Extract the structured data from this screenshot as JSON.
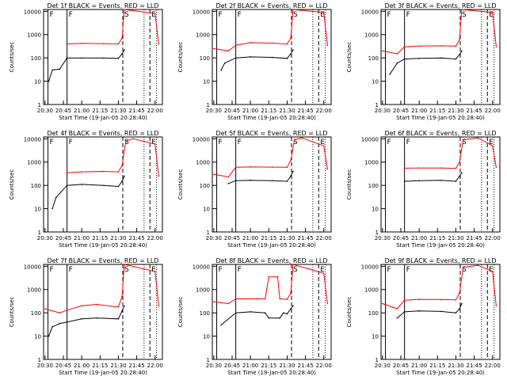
{
  "figure": {
    "xlabel_template": "Start Time (19-Jan-05 20:28:40)",
    "ylabel": "Counts/sec",
    "ytick_labels": [
      "1",
      "10",
      "100",
      "1000",
      "10000"
    ],
    "xtick_labels": [
      "20:30",
      "20:45",
      "21:00",
      "21:15",
      "21:30",
      "21:45",
      "22:00"
    ],
    "colors": {
      "events": "#000000",
      "lld": "#ff0000",
      "background": "#ffffff"
    },
    "marker_letters": [
      "F",
      "F",
      "S",
      "E"
    ]
  },
  "chart_data": [
    {
      "type": "line",
      "title": "Det 1f BLACK = Events, RED = LLD",
      "xlabel": "Start Time (19-Jan-05 20:28:40)",
      "ylabel": "Counts/sec",
      "x_range": [
        "20:30",
        "22:06"
      ],
      "ylim": [
        1,
        12000
      ],
      "log_y": true,
      "series": [
        {
          "name": "Events",
          "color": "#000000",
          "values": [
            [
              20.55,
              10
            ],
            [
              20.6,
              30
            ],
            [
              20.7,
              33
            ],
            [
              20.8,
              100
            ],
            [
              21.0,
              100
            ],
            [
              21.3,
              100
            ],
            [
              21.5,
              95
            ],
            [
              21.55,
              150
            ],
            [
              21.58,
              220
            ]
          ]
        },
        {
          "name": "LLD",
          "color": "#ff0000",
          "values": [
            [
              20.8,
              400
            ],
            [
              21.0,
              420
            ],
            [
              21.3,
              410
            ],
            [
              21.5,
              400
            ],
            [
              21.55,
              700
            ],
            [
              21.58,
              12000
            ],
            [
              22.0,
              8000
            ],
            [
              22.05,
              400
            ]
          ]
        }
      ]
    },
    {
      "type": "line",
      "title": "Det 2f BLACK = Events, RED = LLD",
      "xlabel": "Start Time (19-Jan-05 20:28:40)",
      "ylabel": "Counts/sec",
      "x_range": [
        "20:30",
        "22:06"
      ],
      "ylim": [
        1,
        12000
      ],
      "log_y": true,
      "series": [
        {
          "name": "Events",
          "color": "#000000",
          "values": [
            [
              20.6,
              30
            ],
            [
              20.65,
              60
            ],
            [
              20.8,
              100
            ],
            [
              21.0,
              110
            ],
            [
              21.3,
              105
            ],
            [
              21.5,
              95
            ],
            [
              21.55,
              150
            ],
            [
              21.58,
              220
            ]
          ]
        },
        {
          "name": "LLD",
          "color": "#ff0000",
          "values": [
            [
              20.5,
              250
            ],
            [
              20.7,
              200
            ],
            [
              20.8,
              350
            ],
            [
              21.0,
              450
            ],
            [
              21.3,
              430
            ],
            [
              21.5,
              400
            ],
            [
              21.55,
              700
            ],
            [
              21.58,
              12000
            ],
            [
              22.0,
              9000
            ],
            [
              22.05,
              350
            ]
          ]
        }
      ]
    },
    {
      "type": "line",
      "title": "Det 3f BLACK = Events, RED = LLD",
      "xlabel": "Start Time (19-Jan-05 20:28:40)",
      "ylabel": "Counts/sec",
      "x_range": [
        "20:30",
        "22:06"
      ],
      "ylim": [
        1,
        12000
      ],
      "log_y": true,
      "series": [
        {
          "name": "Events",
          "color": "#000000",
          "values": [
            [
              20.6,
              20
            ],
            [
              20.7,
              60
            ],
            [
              20.8,
              90
            ],
            [
              21.0,
              95
            ],
            [
              21.3,
              100
            ],
            [
              21.5,
              90
            ],
            [
              21.55,
              140
            ],
            [
              21.58,
              200
            ]
          ]
        },
        {
          "name": "LLD",
          "color": "#ff0000",
          "values": [
            [
              20.5,
              200
            ],
            [
              20.7,
              150
            ],
            [
              20.8,
              300
            ],
            [
              21.0,
              320
            ],
            [
              21.3,
              330
            ],
            [
              21.5,
              320
            ],
            [
              21.55,
              600
            ],
            [
              21.58,
              12000
            ],
            [
              22.0,
              9000
            ],
            [
              22.05,
              300
            ]
          ]
        }
      ]
    },
    {
      "type": "line",
      "title": "Det 4f BLACK = Events, RED = LLD",
      "xlabel": "Start Time (19-Jan-05 20:28:40)",
      "ylabel": "Counts/sec",
      "x_range": [
        "20:30",
        "22:06"
      ],
      "ylim": [
        1,
        12000
      ],
      "log_y": true,
      "series": [
        {
          "name": "Events",
          "color": "#000000",
          "values": [
            [
              20.6,
              10
            ],
            [
              20.65,
              30
            ],
            [
              20.8,
              100
            ],
            [
              21.0,
              110
            ],
            [
              21.3,
              100
            ],
            [
              21.5,
              90
            ],
            [
              21.55,
              150
            ],
            [
              21.58,
              250
            ]
          ]
        },
        {
          "name": "LLD",
          "color": "#ff0000",
          "values": [
            [
              20.8,
              350
            ],
            [
              21.0,
              380
            ],
            [
              21.3,
              400
            ],
            [
              21.5,
              380
            ],
            [
              21.55,
              700
            ],
            [
              21.6,
              8000
            ],
            [
              21.7,
              10000
            ],
            [
              22.0,
              6000
            ],
            [
              22.05,
              250
            ]
          ]
        }
      ]
    },
    {
      "type": "line",
      "title": "Det 5f BLACK = Events, RED = LLD",
      "xlabel": "Start Time (19-Jan-05 20:28:40)",
      "ylabel": "Counts/sec",
      "x_range": [
        "20:30",
        "22:06"
      ],
      "ylim": [
        1,
        12000
      ],
      "log_y": true,
      "series": [
        {
          "name": "Events",
          "color": "#000000",
          "values": [
            [
              20.7,
              120
            ],
            [
              20.8,
              160
            ],
            [
              21.0,
              165
            ],
            [
              21.3,
              160
            ],
            [
              21.5,
              150
            ],
            [
              21.55,
              250
            ],
            [
              21.58,
              400
            ]
          ]
        },
        {
          "name": "LLD",
          "color": "#ff0000",
          "values": [
            [
              20.5,
              300
            ],
            [
              20.7,
              230
            ],
            [
              20.8,
              600
            ],
            [
              21.0,
              620
            ],
            [
              21.3,
              610
            ],
            [
              21.5,
              600
            ],
            [
              21.55,
              1200
            ],
            [
              21.6,
              9000
            ],
            [
              21.7,
              11000
            ],
            [
              22.0,
              5000
            ],
            [
              22.05,
              500
            ]
          ]
        }
      ]
    },
    {
      "type": "line",
      "title": "Det 6f BLACK = Events, RED = LLD",
      "xlabel": "Start Time (19-Jan-05 20:28:40)",
      "ylabel": "Counts/sec",
      "x_range": [
        "20:30",
        "22:06"
      ],
      "ylim": [
        1,
        12000
      ],
      "log_y": true,
      "series": [
        {
          "name": "Events",
          "color": "#000000",
          "values": [
            [
              20.8,
              150
            ],
            [
              21.0,
              160
            ],
            [
              21.3,
              165
            ],
            [
              21.5,
              150
            ],
            [
              21.55,
              250
            ],
            [
              21.58,
              350
            ]
          ]
        },
        {
          "name": "LLD",
          "color": "#ff0000",
          "values": [
            [
              20.8,
              550
            ],
            [
              21.0,
              560
            ],
            [
              21.3,
              560
            ],
            [
              21.5,
              540
            ],
            [
              21.55,
              1000
            ],
            [
              21.6,
              9000
            ],
            [
              21.8,
              11000
            ],
            [
              22.0,
              5000
            ],
            [
              22.05,
              600
            ]
          ]
        }
      ]
    },
    {
      "type": "line",
      "title": "Det 7f BLACK = Events, RED = LLD",
      "xlabel": "Start Time (19-Jan-05 20:28:40)",
      "ylabel": "Counts/sec",
      "x_range": [
        "20:30",
        "22:06"
      ],
      "ylim": [
        1,
        12000
      ],
      "log_y": true,
      "series": [
        {
          "name": "Events",
          "color": "#000000",
          "values": [
            [
              20.55,
              10
            ],
            [
              20.6,
              25
            ],
            [
              20.7,
              35
            ],
            [
              20.8,
              40
            ],
            [
              21.0,
              55
            ],
            [
              21.2,
              60
            ],
            [
              21.5,
              55
            ],
            [
              21.55,
              120
            ],
            [
              21.58,
              200
            ]
          ]
        },
        {
          "name": "LLD",
          "color": "#ff0000",
          "values": [
            [
              20.5,
              150
            ],
            [
              20.7,
              100
            ],
            [
              20.8,
              130
            ],
            [
              21.0,
              200
            ],
            [
              21.2,
              230
            ],
            [
              21.5,
              180
            ],
            [
              21.55,
              500
            ],
            [
              21.58,
              12000
            ],
            [
              22.0,
              6000
            ],
            [
              22.05,
              200
            ]
          ]
        }
      ]
    },
    {
      "type": "line",
      "title": "Det 8f BLACK = Events, RED = LLD",
      "xlabel": "Start Time (19-Jan-05 20:28:40)",
      "ylabel": "Counts/sec",
      "x_range": [
        "20:30",
        "22:06"
      ],
      "ylim": [
        1,
        12000
      ],
      "log_y": true,
      "series": [
        {
          "name": "Events",
          "color": "#000000",
          "values": [
            [
              20.6,
              30
            ],
            [
              20.8,
              100
            ],
            [
              21.0,
              110
            ],
            [
              21.2,
              100
            ],
            [
              21.25,
              60
            ],
            [
              21.4,
              60
            ],
            [
              21.45,
              100
            ],
            [
              21.5,
              90
            ],
            [
              21.55,
              150
            ],
            [
              21.58,
              200
            ]
          ]
        },
        {
          "name": "LLD",
          "color": "#ff0000",
          "values": [
            [
              20.5,
              300
            ],
            [
              20.7,
              250
            ],
            [
              20.8,
              400
            ],
            [
              21.1,
              400
            ],
            [
              21.2,
              400
            ],
            [
              21.25,
              3500
            ],
            [
              21.37,
              3500
            ],
            [
              21.4,
              400
            ],
            [
              21.5,
              380
            ],
            [
              21.55,
              700
            ],
            [
              21.58,
              12000
            ],
            [
              22.0,
              5000
            ],
            [
              22.05,
              250
            ]
          ]
        }
      ]
    },
    {
      "type": "line",
      "title": "Det 9f BLACK = Events, RED = LLD",
      "xlabel": "Start Time (19-Jan-05 20:28:40)",
      "ylabel": "Counts/sec",
      "x_range": [
        "20:30",
        "22:06"
      ],
      "ylim": [
        1,
        12000
      ],
      "log_y": true,
      "series": [
        {
          "name": "Events",
          "color": "#000000",
          "values": [
            [
              20.7,
              60
            ],
            [
              20.8,
              110
            ],
            [
              21.0,
              120
            ],
            [
              21.3,
              115
            ],
            [
              21.5,
              100
            ],
            [
              21.55,
              150
            ],
            [
              21.58,
              250
            ]
          ]
        },
        {
          "name": "LLD",
          "color": "#ff0000",
          "values": [
            [
              20.5,
              250
            ],
            [
              20.7,
              150
            ],
            [
              20.8,
              350
            ],
            [
              21.0,
              380
            ],
            [
              21.3,
              370
            ],
            [
              21.5,
              360
            ],
            [
              21.55,
              700
            ],
            [
              21.6,
              9000
            ],
            [
              21.8,
              11000
            ],
            [
              22.0,
              6000
            ],
            [
              22.05,
              200
            ]
          ]
        }
      ]
    }
  ]
}
